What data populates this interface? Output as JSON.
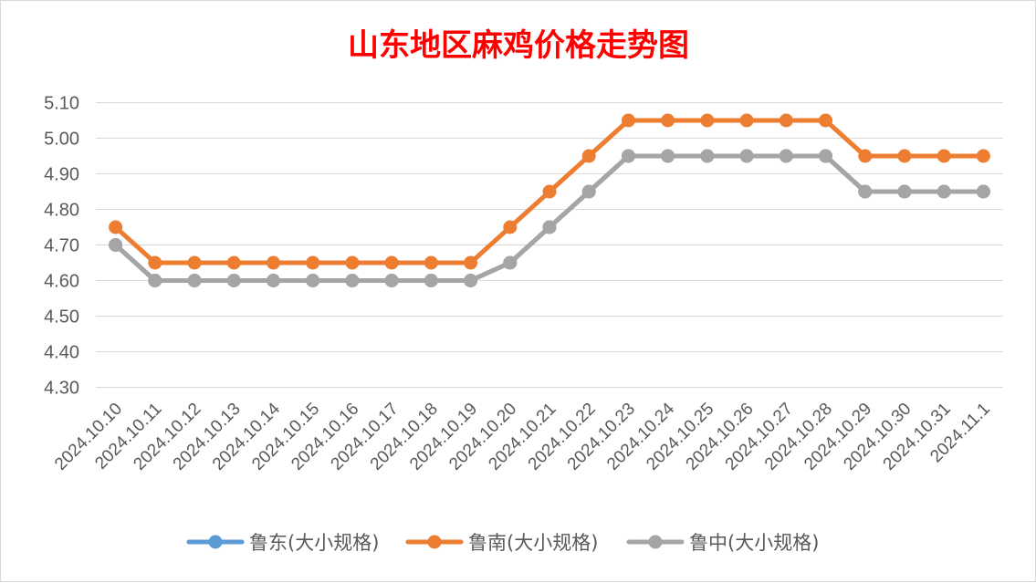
{
  "chart_data": {
    "type": "line",
    "title": "山东地区麻鸡价格走势图",
    "title_color": "#ff0000",
    "categories": [
      "2024.10.10",
      "2024.10.11",
      "2024.10.12",
      "2024.10.13",
      "2024.10.14",
      "2024.10.15",
      "2024.10.16",
      "2024.10.17",
      "2024.10.18",
      "2024.10.19",
      "2024.10.20",
      "2024.10.21",
      "2024.10.22",
      "2024.10.23",
      "2024.10.24",
      "2024.10.25",
      "2024.10.26",
      "2024.10.27",
      "2024.10.28",
      "2024.10.29",
      "2024.10.30",
      "2024.10.31",
      "2024.11.1"
    ],
    "y_ticks": [
      "4.30",
      "4.40",
      "4.50",
      "4.60",
      "4.70",
      "4.80",
      "4.90",
      "5.00",
      "5.10"
    ],
    "ylim": [
      4.3,
      5.1
    ],
    "grid": true,
    "legend_position": "bottom",
    "series": [
      {
        "name": "鲁东(大小规格)",
        "color": "#5b9bd5",
        "values": [
          4.7,
          4.6,
          4.6,
          4.6,
          4.6,
          4.6,
          4.6,
          4.6,
          4.6,
          4.6,
          4.65,
          4.75,
          4.85,
          4.95,
          4.95,
          4.95,
          4.95,
          4.95,
          4.95,
          4.85,
          4.85,
          4.85,
          4.85
        ]
      },
      {
        "name": "鲁南(大小规格)",
        "color": "#ed7d31",
        "values": [
          4.75,
          4.65,
          4.65,
          4.65,
          4.65,
          4.65,
          4.65,
          4.65,
          4.65,
          4.65,
          4.75,
          4.85,
          4.95,
          5.05,
          5.05,
          5.05,
          5.05,
          5.05,
          5.05,
          4.95,
          4.95,
          4.95,
          4.95
        ]
      },
      {
        "name": "鲁中(大小规格)",
        "color": "#a5a5a5",
        "values": [
          4.7,
          4.6,
          4.6,
          4.6,
          4.6,
          4.6,
          4.6,
          4.6,
          4.6,
          4.6,
          4.65,
          4.75,
          4.85,
          4.95,
          4.95,
          4.95,
          4.95,
          4.95,
          4.95,
          4.85,
          4.85,
          4.85,
          4.85
        ]
      }
    ]
  }
}
